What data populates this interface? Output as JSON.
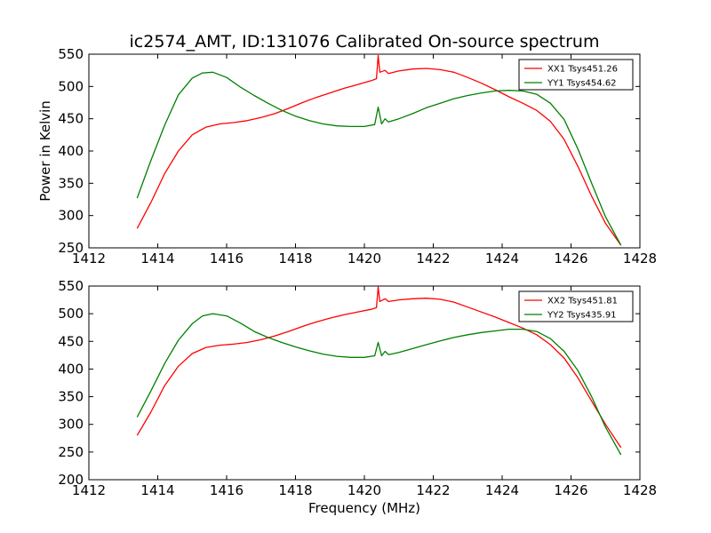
{
  "chart_data": [
    {
      "type": "line",
      "title": "ic2574_AMT, ID:131076 Calibrated On-source spectrum",
      "xlabel": "",
      "ylabel": "Power in Kelvin",
      "xlim": [
        1412,
        1428
      ],
      "ylim": [
        250,
        550
      ],
      "xticks": [
        "1412",
        "1414",
        "1416",
        "1418",
        "1420",
        "1422",
        "1424",
        "1426",
        "1428"
      ],
      "yticks": [
        "250",
        "300",
        "350",
        "400",
        "450",
        "500",
        "550"
      ],
      "legend": "top-right",
      "grid": false,
      "series": [
        {
          "name": "XX1 Tsys451.26",
          "color": "#ff0000",
          "x": [
            1413.4,
            1413.8,
            1414.2,
            1414.6,
            1415.0,
            1415.4,
            1415.8,
            1416.2,
            1416.6,
            1417.0,
            1417.4,
            1417.8,
            1418.2,
            1418.6,
            1419.0,
            1419.4,
            1419.8,
            1420.2,
            1420.35,
            1420.4,
            1420.45,
            1420.6,
            1420.7,
            1421.0,
            1421.4,
            1421.8,
            1422.2,
            1422.6,
            1423.0,
            1423.4,
            1423.8,
            1424.2,
            1424.6,
            1425.0,
            1425.4,
            1425.8,
            1426.2,
            1426.6,
            1427.0,
            1427.45
          ],
          "y": [
            280,
            320,
            365,
            400,
            425,
            437,
            442,
            444,
            447,
            452,
            458,
            466,
            475,
            483,
            490,
            497,
            503,
            509,
            512,
            548,
            522,
            525,
            520,
            524,
            527,
            528,
            526,
            522,
            514,
            505,
            495,
            484,
            474,
            463,
            446,
            418,
            376,
            330,
            288,
            254
          ]
        },
        {
          "name": "YY1 Tsys454.62",
          "color": "#008000",
          "x": [
            1413.4,
            1413.8,
            1414.2,
            1414.6,
            1415.0,
            1415.3,
            1415.6,
            1416.0,
            1416.4,
            1416.8,
            1417.2,
            1417.6,
            1418.0,
            1418.4,
            1418.8,
            1419.2,
            1419.6,
            1420.0,
            1420.3,
            1420.4,
            1420.5,
            1420.6,
            1420.7,
            1421.0,
            1421.4,
            1421.8,
            1422.2,
            1422.6,
            1423.0,
            1423.4,
            1423.8,
            1424.2,
            1424.6,
            1425.0,
            1425.4,
            1425.8,
            1426.2,
            1426.6,
            1427.0,
            1427.45
          ],
          "y": [
            327,
            385,
            440,
            487,
            513,
            521,
            522,
            514,
            499,
            486,
            474,
            463,
            454,
            447,
            442,
            439,
            438,
            438,
            441,
            468,
            442,
            450,
            445,
            450,
            458,
            467,
            474,
            481,
            486,
            490,
            493,
            494,
            493,
            488,
            474,
            449,
            403,
            350,
            298,
            254
          ]
        }
      ]
    },
    {
      "type": "line",
      "title": "",
      "xlabel": "Frequency (MHz)",
      "ylabel": "",
      "xlim": [
        1412,
        1428
      ],
      "ylim": [
        200,
        550
      ],
      "xticks": [
        "1412",
        "1414",
        "1416",
        "1418",
        "1420",
        "1422",
        "1424",
        "1426",
        "1428"
      ],
      "yticks": [
        "200",
        "250",
        "300",
        "350",
        "400",
        "450",
        "500",
        "550"
      ],
      "legend": "top-right",
      "grid": false,
      "series": [
        {
          "name": "XX2 Tsys451.81",
          "color": "#ff0000",
          "x": [
            1413.4,
            1413.8,
            1414.2,
            1414.6,
            1415.0,
            1415.4,
            1415.8,
            1416.2,
            1416.6,
            1417.0,
            1417.4,
            1417.8,
            1418.2,
            1418.6,
            1419.0,
            1419.4,
            1419.8,
            1420.2,
            1420.35,
            1420.4,
            1420.45,
            1420.6,
            1420.7,
            1421.0,
            1421.4,
            1421.8,
            1422.2,
            1422.6,
            1423.0,
            1423.4,
            1423.8,
            1424.2,
            1424.6,
            1425.0,
            1425.4,
            1425.8,
            1426.2,
            1426.6,
            1427.0,
            1427.45
          ],
          "y": [
            280,
            322,
            370,
            405,
            428,
            439,
            443,
            445,
            448,
            453,
            460,
            468,
            477,
            485,
            492,
            498,
            503,
            508,
            511,
            548,
            522,
            527,
            522,
            525,
            527,
            528,
            526,
            521,
            512,
            503,
            494,
            484,
            474,
            462,
            444,
            420,
            384,
            342,
            300,
            258
          ]
        },
        {
          "name": "YY2 Tsys435.91",
          "color": "#008000",
          "x": [
            1413.4,
            1413.8,
            1414.2,
            1414.6,
            1415.0,
            1415.3,
            1415.6,
            1416.0,
            1416.4,
            1416.8,
            1417.2,
            1417.6,
            1418.0,
            1418.4,
            1418.8,
            1419.2,
            1419.6,
            1420.0,
            1420.3,
            1420.4,
            1420.5,
            1420.6,
            1420.7,
            1421.0,
            1421.4,
            1421.8,
            1422.2,
            1422.6,
            1423.0,
            1423.4,
            1423.8,
            1424.2,
            1424.6,
            1425.0,
            1425.4,
            1425.8,
            1426.2,
            1426.6,
            1427.0,
            1427.45
          ],
          "y": [
            313,
            360,
            410,
            452,
            482,
            496,
            500,
            496,
            483,
            468,
            457,
            448,
            440,
            433,
            427,
            423,
            421,
            421,
            424,
            448,
            424,
            432,
            426,
            430,
            437,
            444,
            451,
            457,
            462,
            466,
            469,
            472,
            472,
            468,
            455,
            432,
            397,
            350,
            295,
            245
          ]
        }
      ]
    }
  ]
}
